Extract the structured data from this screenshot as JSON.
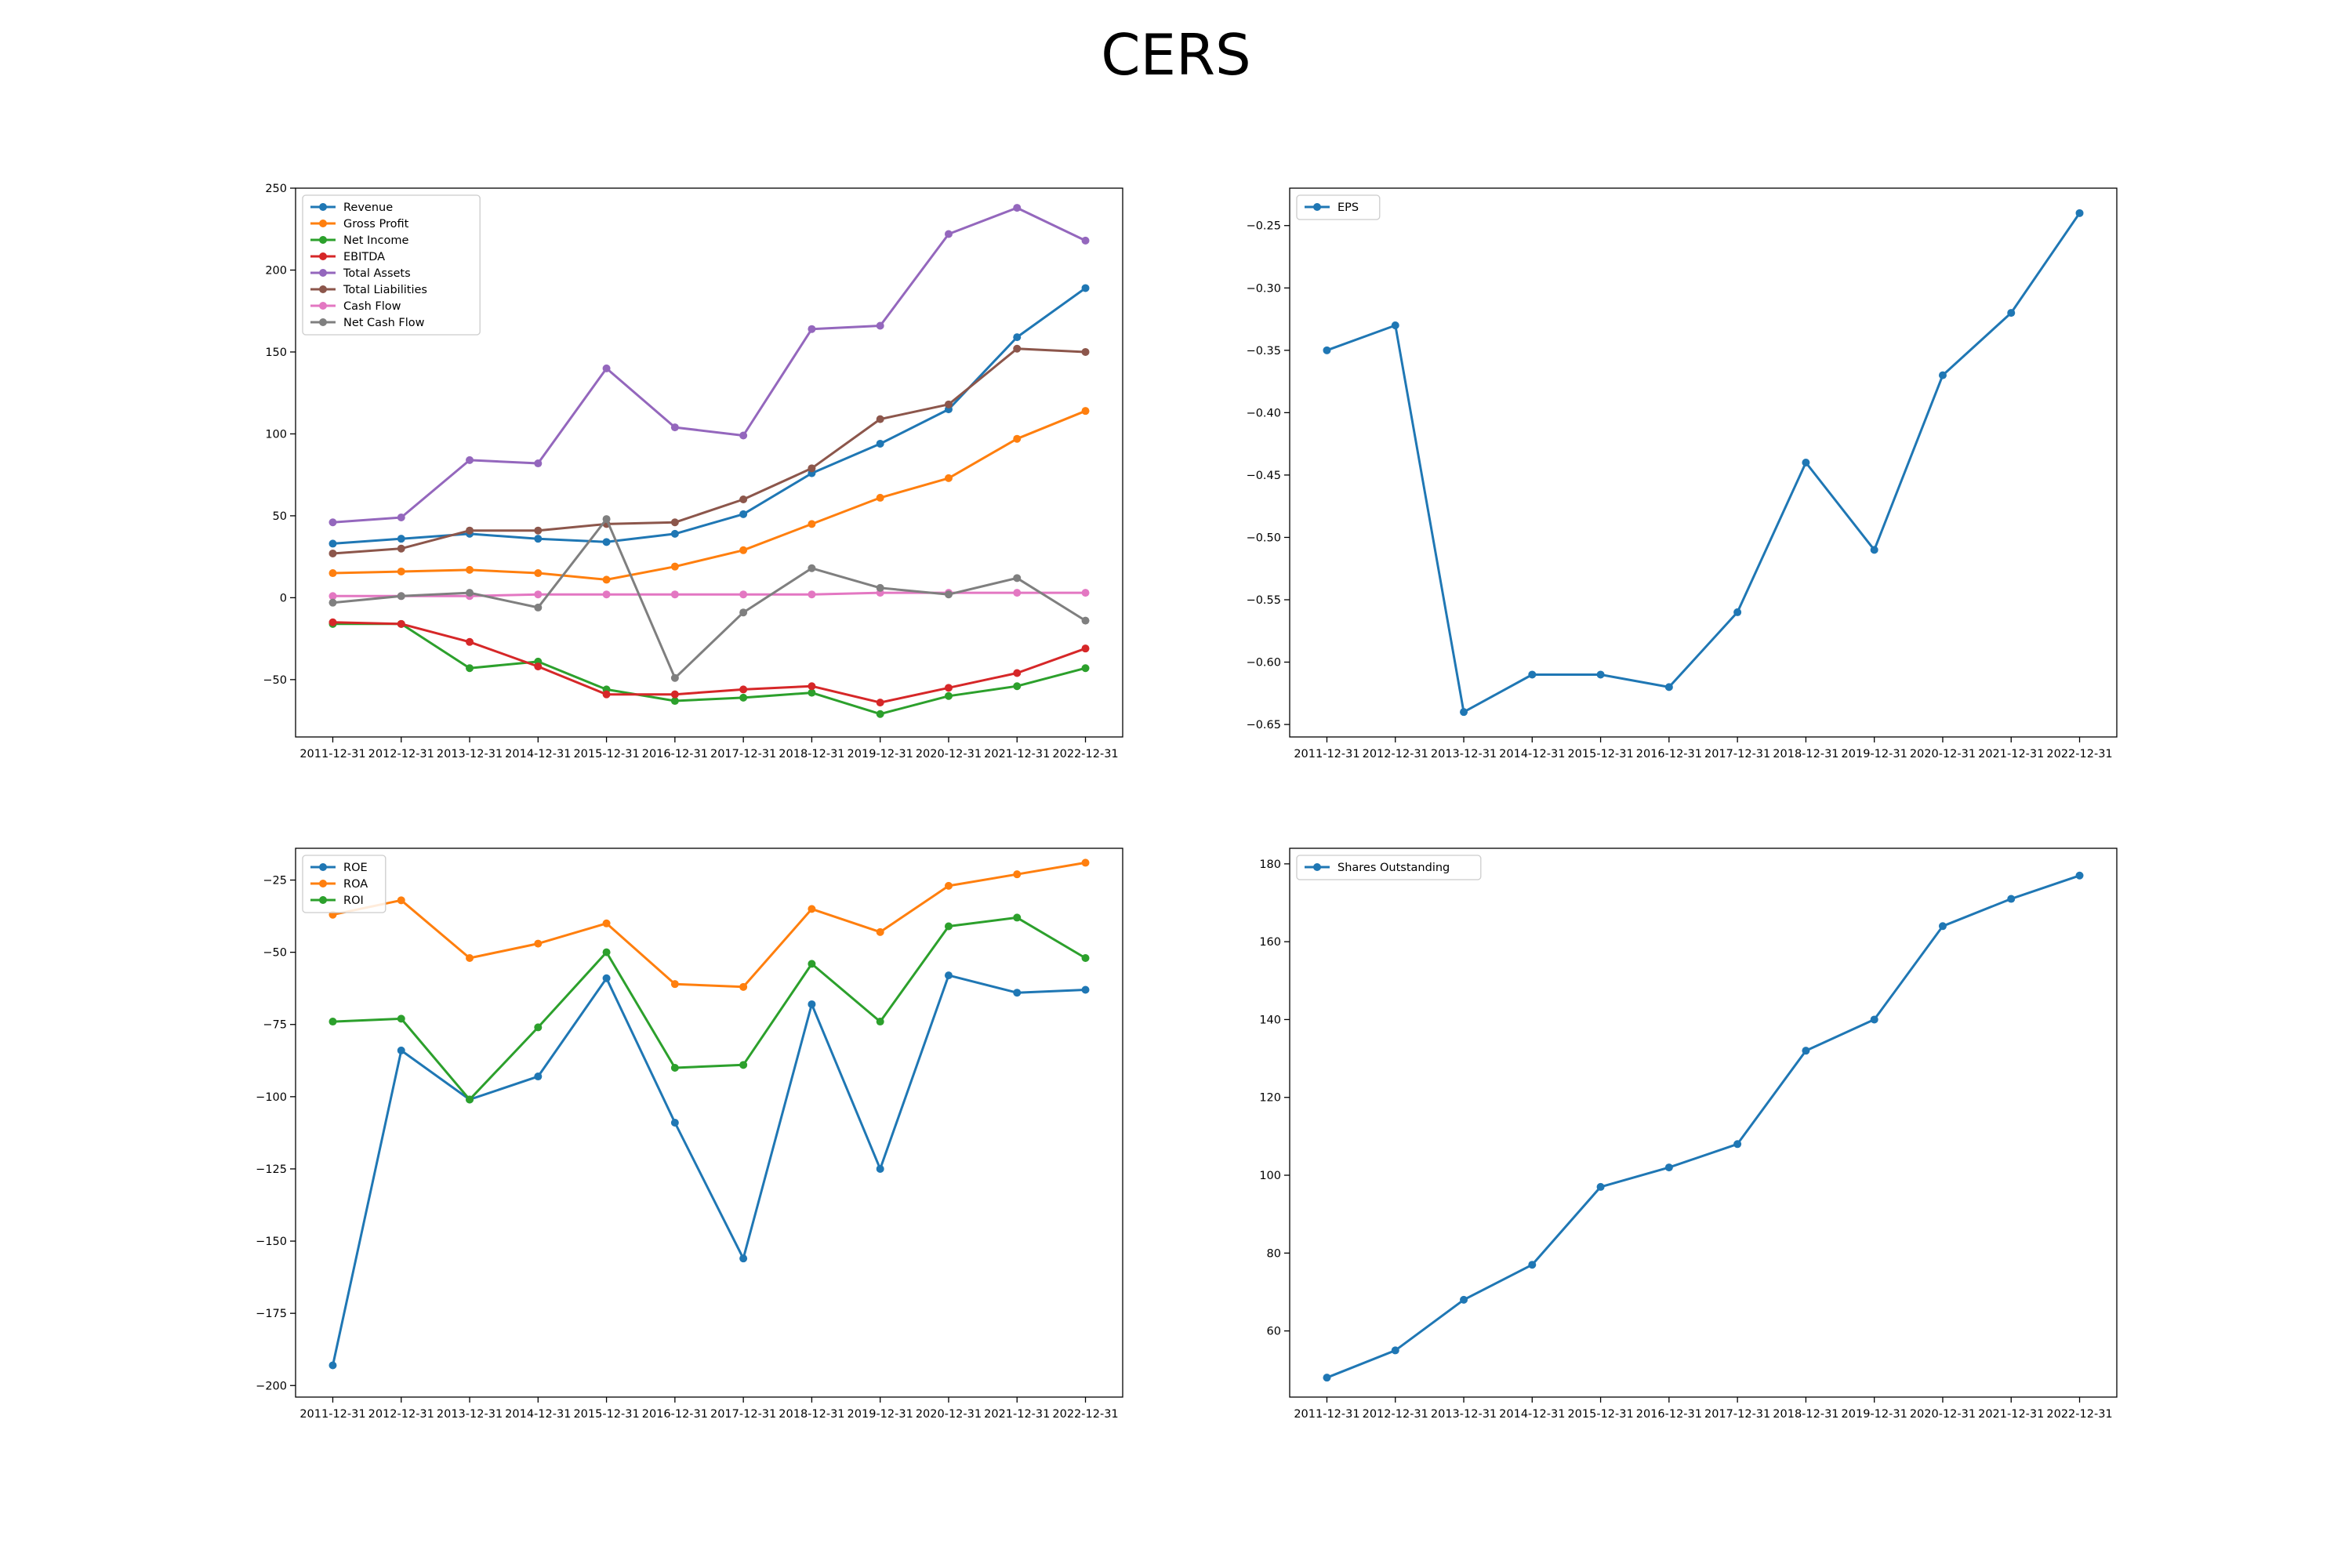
{
  "title": "CERS",
  "chart_data": [
    {
      "type": "line",
      "categories": [
        "2011-12-31",
        "2012-12-31",
        "2013-12-31",
        "2014-12-31",
        "2015-12-31",
        "2016-12-31",
        "2017-12-31",
        "2018-12-31",
        "2019-12-31",
        "2020-12-31",
        "2021-12-31",
        "2022-12-31"
      ],
      "ylim": [
        -85,
        250
      ],
      "yticks": [
        250,
        200,
        150,
        100,
        50,
        0,
        -50
      ],
      "legend": "top-left",
      "series": [
        {
          "name": "Revenue",
          "color": "#1f77b4",
          "values": [
            33,
            36,
            39,
            36,
            34,
            39,
            51,
            76,
            94,
            115,
            159,
            189
          ]
        },
        {
          "name": "Gross Profit",
          "color": "#ff7f0e",
          "values": [
            15,
            16,
            17,
            15,
            11,
            19,
            29,
            45,
            61,
            73,
            97,
            114
          ]
        },
        {
          "name": "Net Income",
          "color": "#2ca02c",
          "values": [
            -16,
            -16,
            -43,
            -39,
            -56,
            -63,
            -61,
            -58,
            -71,
            -60,
            -54,
            -43
          ]
        },
        {
          "name": "EBITDA",
          "color": "#d62728",
          "values": [
            -15,
            -16,
            -27,
            -42,
            -59,
            -59,
            -56,
            -54,
            -64,
            -55,
            -46,
            -31
          ]
        },
        {
          "name": "Total Assets",
          "color": "#9467bd",
          "values": [
            46,
            49,
            84,
            82,
            140,
            104,
            99,
            164,
            166,
            222,
            238,
            218
          ]
        },
        {
          "name": "Total Liabilities",
          "color": "#8c564b",
          "values": [
            27,
            30,
            41,
            41,
            45,
            46,
            60,
            79,
            109,
            118,
            152,
            150
          ]
        },
        {
          "name": "Cash Flow",
          "color": "#e377c2",
          "values": [
            1,
            1,
            1,
            2,
            2,
            2,
            2,
            2,
            3,
            3,
            3,
            3
          ]
        },
        {
          "name": "Net Cash Flow",
          "color": "#7f7f7f",
          "values": [
            -3,
            1,
            3,
            -6,
            48,
            -49,
            -9,
            18,
            6,
            2,
            12,
            -14
          ]
        }
      ]
    },
    {
      "type": "line",
      "categories": [
        "2011-12-31",
        "2012-12-31",
        "2013-12-31",
        "2014-12-31",
        "2015-12-31",
        "2016-12-31",
        "2017-12-31",
        "2018-12-31",
        "2019-12-31",
        "2020-12-31",
        "2021-12-31",
        "2022-12-31"
      ],
      "ylim": [
        -0.66,
        -0.22
      ],
      "yticks": [
        -0.25,
        -0.3,
        -0.35,
        -0.4,
        -0.45,
        -0.5,
        -0.55,
        -0.6,
        -0.65
      ],
      "ytick_labels": [
        "−0.25",
        "−0.30",
        "−0.35",
        "−0.40",
        "−0.45",
        "−0.50",
        "−0.55",
        "−0.60",
        "−0.65"
      ],
      "legend": "top-left",
      "series": [
        {
          "name": "EPS",
          "color": "#1f77b4",
          "values": [
            -0.35,
            -0.33,
            -0.64,
            -0.61,
            -0.61,
            -0.62,
            -0.56,
            -0.44,
            -0.51,
            -0.37,
            -0.32,
            -0.24
          ]
        }
      ]
    },
    {
      "type": "line",
      "categories": [
        "2011-12-31",
        "2012-12-31",
        "2013-12-31",
        "2014-12-31",
        "2015-12-31",
        "2016-12-31",
        "2017-12-31",
        "2018-12-31",
        "2019-12-31",
        "2020-12-31",
        "2021-12-31",
        "2022-12-31"
      ],
      "ylim": [
        -204,
        -14
      ],
      "yticks": [
        -25,
        -50,
        -75,
        -100,
        -125,
        -150,
        -175,
        -200
      ],
      "legend": "top-left",
      "series": [
        {
          "name": "ROE",
          "color": "#1f77b4",
          "values": [
            -193,
            -84,
            -101,
            -93,
            -59,
            -109,
            -156,
            -68,
            -125,
            -58,
            -64,
            -63
          ]
        },
        {
          "name": "ROA",
          "color": "#ff7f0e",
          "values": [
            -37,
            -32,
            -52,
            -47,
            -40,
            -61,
            -62,
            -35,
            -43,
            -27,
            -23,
            -19
          ]
        },
        {
          "name": "ROI",
          "color": "#2ca02c",
          "values": [
            -74,
            -73,
            -101,
            -76,
            -50,
            -90,
            -89,
            -54,
            -74,
            -41,
            -38,
            -52
          ]
        }
      ]
    },
    {
      "type": "line",
      "categories": [
        "2011-12-31",
        "2012-12-31",
        "2013-12-31",
        "2014-12-31",
        "2015-12-31",
        "2016-12-31",
        "2017-12-31",
        "2018-12-31",
        "2019-12-31",
        "2020-12-31",
        "2021-12-31",
        "2022-12-31"
      ],
      "ylim": [
        43,
        184
      ],
      "yticks": [
        180,
        160,
        140,
        120,
        100,
        80,
        60
      ],
      "legend": "top-left",
      "series": [
        {
          "name": "Shares Outstanding",
          "color": "#1f77b4",
          "values": [
            48,
            55,
            68,
            77,
            97,
            102,
            108,
            132,
            140,
            164,
            171,
            177
          ]
        }
      ]
    }
  ]
}
